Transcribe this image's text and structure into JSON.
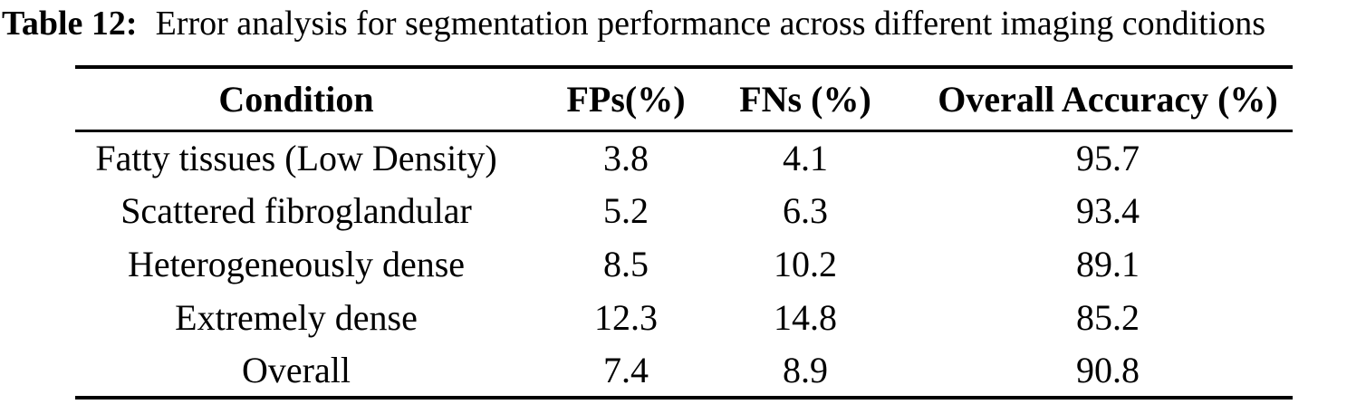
{
  "caption": {
    "label": "Table 12:",
    "text": "Error analysis for segmentation performance across different imaging conditions"
  },
  "table": {
    "headers": [
      "Condition",
      "FPs(%)",
      "FNs (%)",
      "Overall Accuracy (%)"
    ],
    "rows": [
      {
        "condition": "Fatty tissues (Low Density)",
        "fps": "3.8",
        "fns": "4.1",
        "accuracy": "95.7"
      },
      {
        "condition": "Scattered fibroglandular",
        "fps": "5.2",
        "fns": "6.3",
        "accuracy": "93.4"
      },
      {
        "condition": "Heterogeneously dense",
        "fps": "8.5",
        "fns": "10.2",
        "accuracy": "89.1"
      },
      {
        "condition": "Extremely dense",
        "fps": "12.3",
        "fns": "14.8",
        "accuracy": "85.2"
      },
      {
        "condition": "Overall",
        "fps": "7.4",
        "fns": "8.9",
        "accuracy": "90.8"
      }
    ]
  },
  "colors": {
    "text": "#000000",
    "background": "#ffffff",
    "rule": "#000000"
  },
  "chart_data": {
    "type": "table",
    "title": "Table 12: Error analysis for segmentation performance across different imaging conditions",
    "columns": [
      "Condition",
      "FPs(%)",
      "FNs (%)",
      "Overall Accuracy (%)"
    ],
    "rows": [
      [
        "Fatty tissues (Low Density)",
        3.8,
        4.1,
        95.7
      ],
      [
        "Scattered fibroglandular",
        5.2,
        6.3,
        93.4
      ],
      [
        "Heterogeneously dense",
        8.5,
        10.2,
        89.1
      ],
      [
        "Extremely dense",
        12.3,
        14.8,
        85.2
      ],
      [
        "Overall",
        7.4,
        8.9,
        90.8
      ]
    ]
  }
}
